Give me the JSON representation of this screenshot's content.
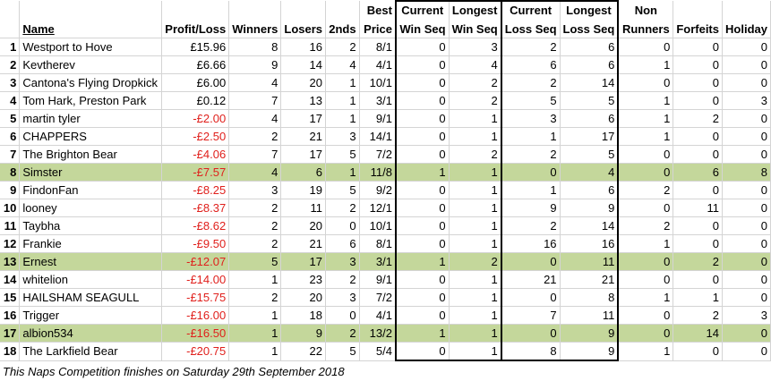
{
  "headers": {
    "name": "Name",
    "profit_loss": "Profit/Loss",
    "winners": "Winners",
    "losers": "Losers",
    "seconds": "2nds",
    "best_price_1": "Best",
    "best_price_2": "Price",
    "cur_win_1": "Current",
    "cur_win_2": "Win Seq",
    "long_win_1": "Longest",
    "long_win_2": "Win Seq",
    "cur_loss_1": "Current",
    "cur_loss_2": "Loss Seq",
    "long_loss_1": "Longest",
    "long_loss_2": "Loss Seq",
    "non_runners_1": "Non",
    "non_runners_2": "Runners",
    "forfeits": "Forfeits",
    "holiday": "Holiday"
  },
  "rows": [
    {
      "rank": "1",
      "name": "Westport to Hove",
      "pl": "£15.96",
      "neg": false,
      "winners": "8",
      "losers": "16",
      "seconds": "2",
      "best": "8/1",
      "cw": "0",
      "lw": "3",
      "cl": "2",
      "ll": "6",
      "nr": "0",
      "forfeits": "0",
      "holiday": "0",
      "highlight": false
    },
    {
      "rank": "2",
      "name": "Kevtherev",
      "pl": "£6.66",
      "neg": false,
      "winners": "9",
      "losers": "14",
      "seconds": "4",
      "best": "4/1",
      "cw": "0",
      "lw": "4",
      "cl": "6",
      "ll": "6",
      "nr": "1",
      "forfeits": "0",
      "holiday": "0",
      "highlight": false
    },
    {
      "rank": "3",
      "name": "Cantona's Flying Dropkick",
      "pl": "£6.00",
      "neg": false,
      "winners": "4",
      "losers": "20",
      "seconds": "1",
      "best": "10/1",
      "cw": "0",
      "lw": "2",
      "cl": "2",
      "ll": "14",
      "nr": "0",
      "forfeits": "0",
      "holiday": "0",
      "highlight": false
    },
    {
      "rank": "4",
      "name": "Tom Hark, Preston Park",
      "pl": "£0.12",
      "neg": false,
      "winners": "7",
      "losers": "13",
      "seconds": "1",
      "best": "3/1",
      "cw": "0",
      "lw": "2",
      "cl": "5",
      "ll": "5",
      "nr": "1",
      "forfeits": "0",
      "holiday": "3",
      "highlight": false
    },
    {
      "rank": "5",
      "name": "martin tyler",
      "pl": "-£2.00",
      "neg": true,
      "winners": "4",
      "losers": "17",
      "seconds": "1",
      "best": "9/1",
      "cw": "0",
      "lw": "1",
      "cl": "3",
      "ll": "6",
      "nr": "1",
      "forfeits": "2",
      "holiday": "0",
      "highlight": false
    },
    {
      "rank": "6",
      "name": "CHAPPERS",
      "pl": "-£2.50",
      "neg": true,
      "winners": "2",
      "losers": "21",
      "seconds": "3",
      "best": "14/1",
      "cw": "0",
      "lw": "1",
      "cl": "1",
      "ll": "17",
      "nr": "1",
      "forfeits": "0",
      "holiday": "0",
      "highlight": false
    },
    {
      "rank": "7",
      "name": "The Brighton Bear",
      "pl": "-£4.06",
      "neg": true,
      "winners": "7",
      "losers": "17",
      "seconds": "5",
      "best": "7/2",
      "cw": "0",
      "lw": "2",
      "cl": "2",
      "ll": "5",
      "nr": "0",
      "forfeits": "0",
      "holiday": "0",
      "highlight": false
    },
    {
      "rank": "8",
      "name": "Simster",
      "pl": "-£7.57",
      "neg": true,
      "winners": "4",
      "losers": "6",
      "seconds": "1",
      "best": "11/8",
      "cw": "1",
      "lw": "1",
      "cl": "0",
      "ll": "4",
      "nr": "0",
      "forfeits": "6",
      "holiday": "8",
      "highlight": true
    },
    {
      "rank": "9",
      "name": "FindonFan",
      "pl": "-£8.25",
      "neg": true,
      "winners": "3",
      "losers": "19",
      "seconds": "5",
      "best": "9/2",
      "cw": "0",
      "lw": "1",
      "cl": "1",
      "ll": "6",
      "nr": "2",
      "forfeits": "0",
      "holiday": "0",
      "highlight": false
    },
    {
      "rank": "10",
      "name": "looney",
      "pl": "-£8.37",
      "neg": true,
      "winners": "2",
      "losers": "11",
      "seconds": "2",
      "best": "12/1",
      "cw": "0",
      "lw": "1",
      "cl": "9",
      "ll": "9",
      "nr": "0",
      "forfeits": "11",
      "holiday": "0",
      "highlight": false
    },
    {
      "rank": "11",
      "name": "Taybha",
      "pl": "-£8.62",
      "neg": true,
      "winners": "2",
      "losers": "20",
      "seconds": "0",
      "best": "10/1",
      "cw": "0",
      "lw": "1",
      "cl": "2",
      "ll": "14",
      "nr": "2",
      "forfeits": "0",
      "holiday": "0",
      "highlight": false
    },
    {
      "rank": "12",
      "name": "Frankie",
      "pl": "-£9.50",
      "neg": true,
      "winners": "2",
      "losers": "21",
      "seconds": "6",
      "best": "8/1",
      "cw": "0",
      "lw": "1",
      "cl": "16",
      "ll": "16",
      "nr": "1",
      "forfeits": "0",
      "holiday": "0",
      "highlight": false
    },
    {
      "rank": "13",
      "name": "Ernest",
      "pl": "-£12.07",
      "neg": true,
      "winners": "5",
      "losers": "17",
      "seconds": "3",
      "best": "3/1",
      "cw": "1",
      "lw": "2",
      "cl": "0",
      "ll": "11",
      "nr": "0",
      "forfeits": "2",
      "holiday": "0",
      "highlight": true
    },
    {
      "rank": "14",
      "name": "whitelion",
      "pl": "-£14.00",
      "neg": true,
      "winners": "1",
      "losers": "23",
      "seconds": "2",
      "best": "9/1",
      "cw": "0",
      "lw": "1",
      "cl": "21",
      "ll": "21",
      "nr": "0",
      "forfeits": "0",
      "holiday": "0",
      "highlight": false
    },
    {
      "rank": "15",
      "name": "HAILSHAM SEAGULL",
      "pl": "-£15.75",
      "neg": true,
      "winners": "2",
      "losers": "20",
      "seconds": "3",
      "best": "7/2",
      "cw": "0",
      "lw": "1",
      "cl": "0",
      "ll": "8",
      "nr": "1",
      "forfeits": "1",
      "holiday": "0",
      "highlight": false
    },
    {
      "rank": "16",
      "name": "Trigger",
      "pl": "-£16.00",
      "neg": true,
      "winners": "1",
      "losers": "18",
      "seconds": "0",
      "best": "4/1",
      "cw": "0",
      "lw": "1",
      "cl": "7",
      "ll": "11",
      "nr": "0",
      "forfeits": "2",
      "holiday": "3",
      "highlight": false
    },
    {
      "rank": "17",
      "name": "albion534",
      "pl": "-£16.50",
      "neg": true,
      "winners": "1",
      "losers": "9",
      "seconds": "2",
      "best": "13/2",
      "cw": "1",
      "lw": "1",
      "cl": "0",
      "ll": "9",
      "nr": "0",
      "forfeits": "14",
      "holiday": "0",
      "highlight": true
    },
    {
      "rank": "18",
      "name": "The Larkfield Bear",
      "pl": "-£20.75",
      "neg": true,
      "winners": "1",
      "losers": "22",
      "seconds": "5",
      "best": "5/4",
      "cw": "0",
      "lw": "1",
      "cl": "8",
      "ll": "9",
      "nr": "1",
      "forfeits": "0",
      "holiday": "0",
      "highlight": false
    }
  ],
  "footer": "This Naps Competition finishes on Saturday 29th September 2018",
  "colors": {
    "highlight": "#c4d79b",
    "negative": "#e0201c"
  }
}
